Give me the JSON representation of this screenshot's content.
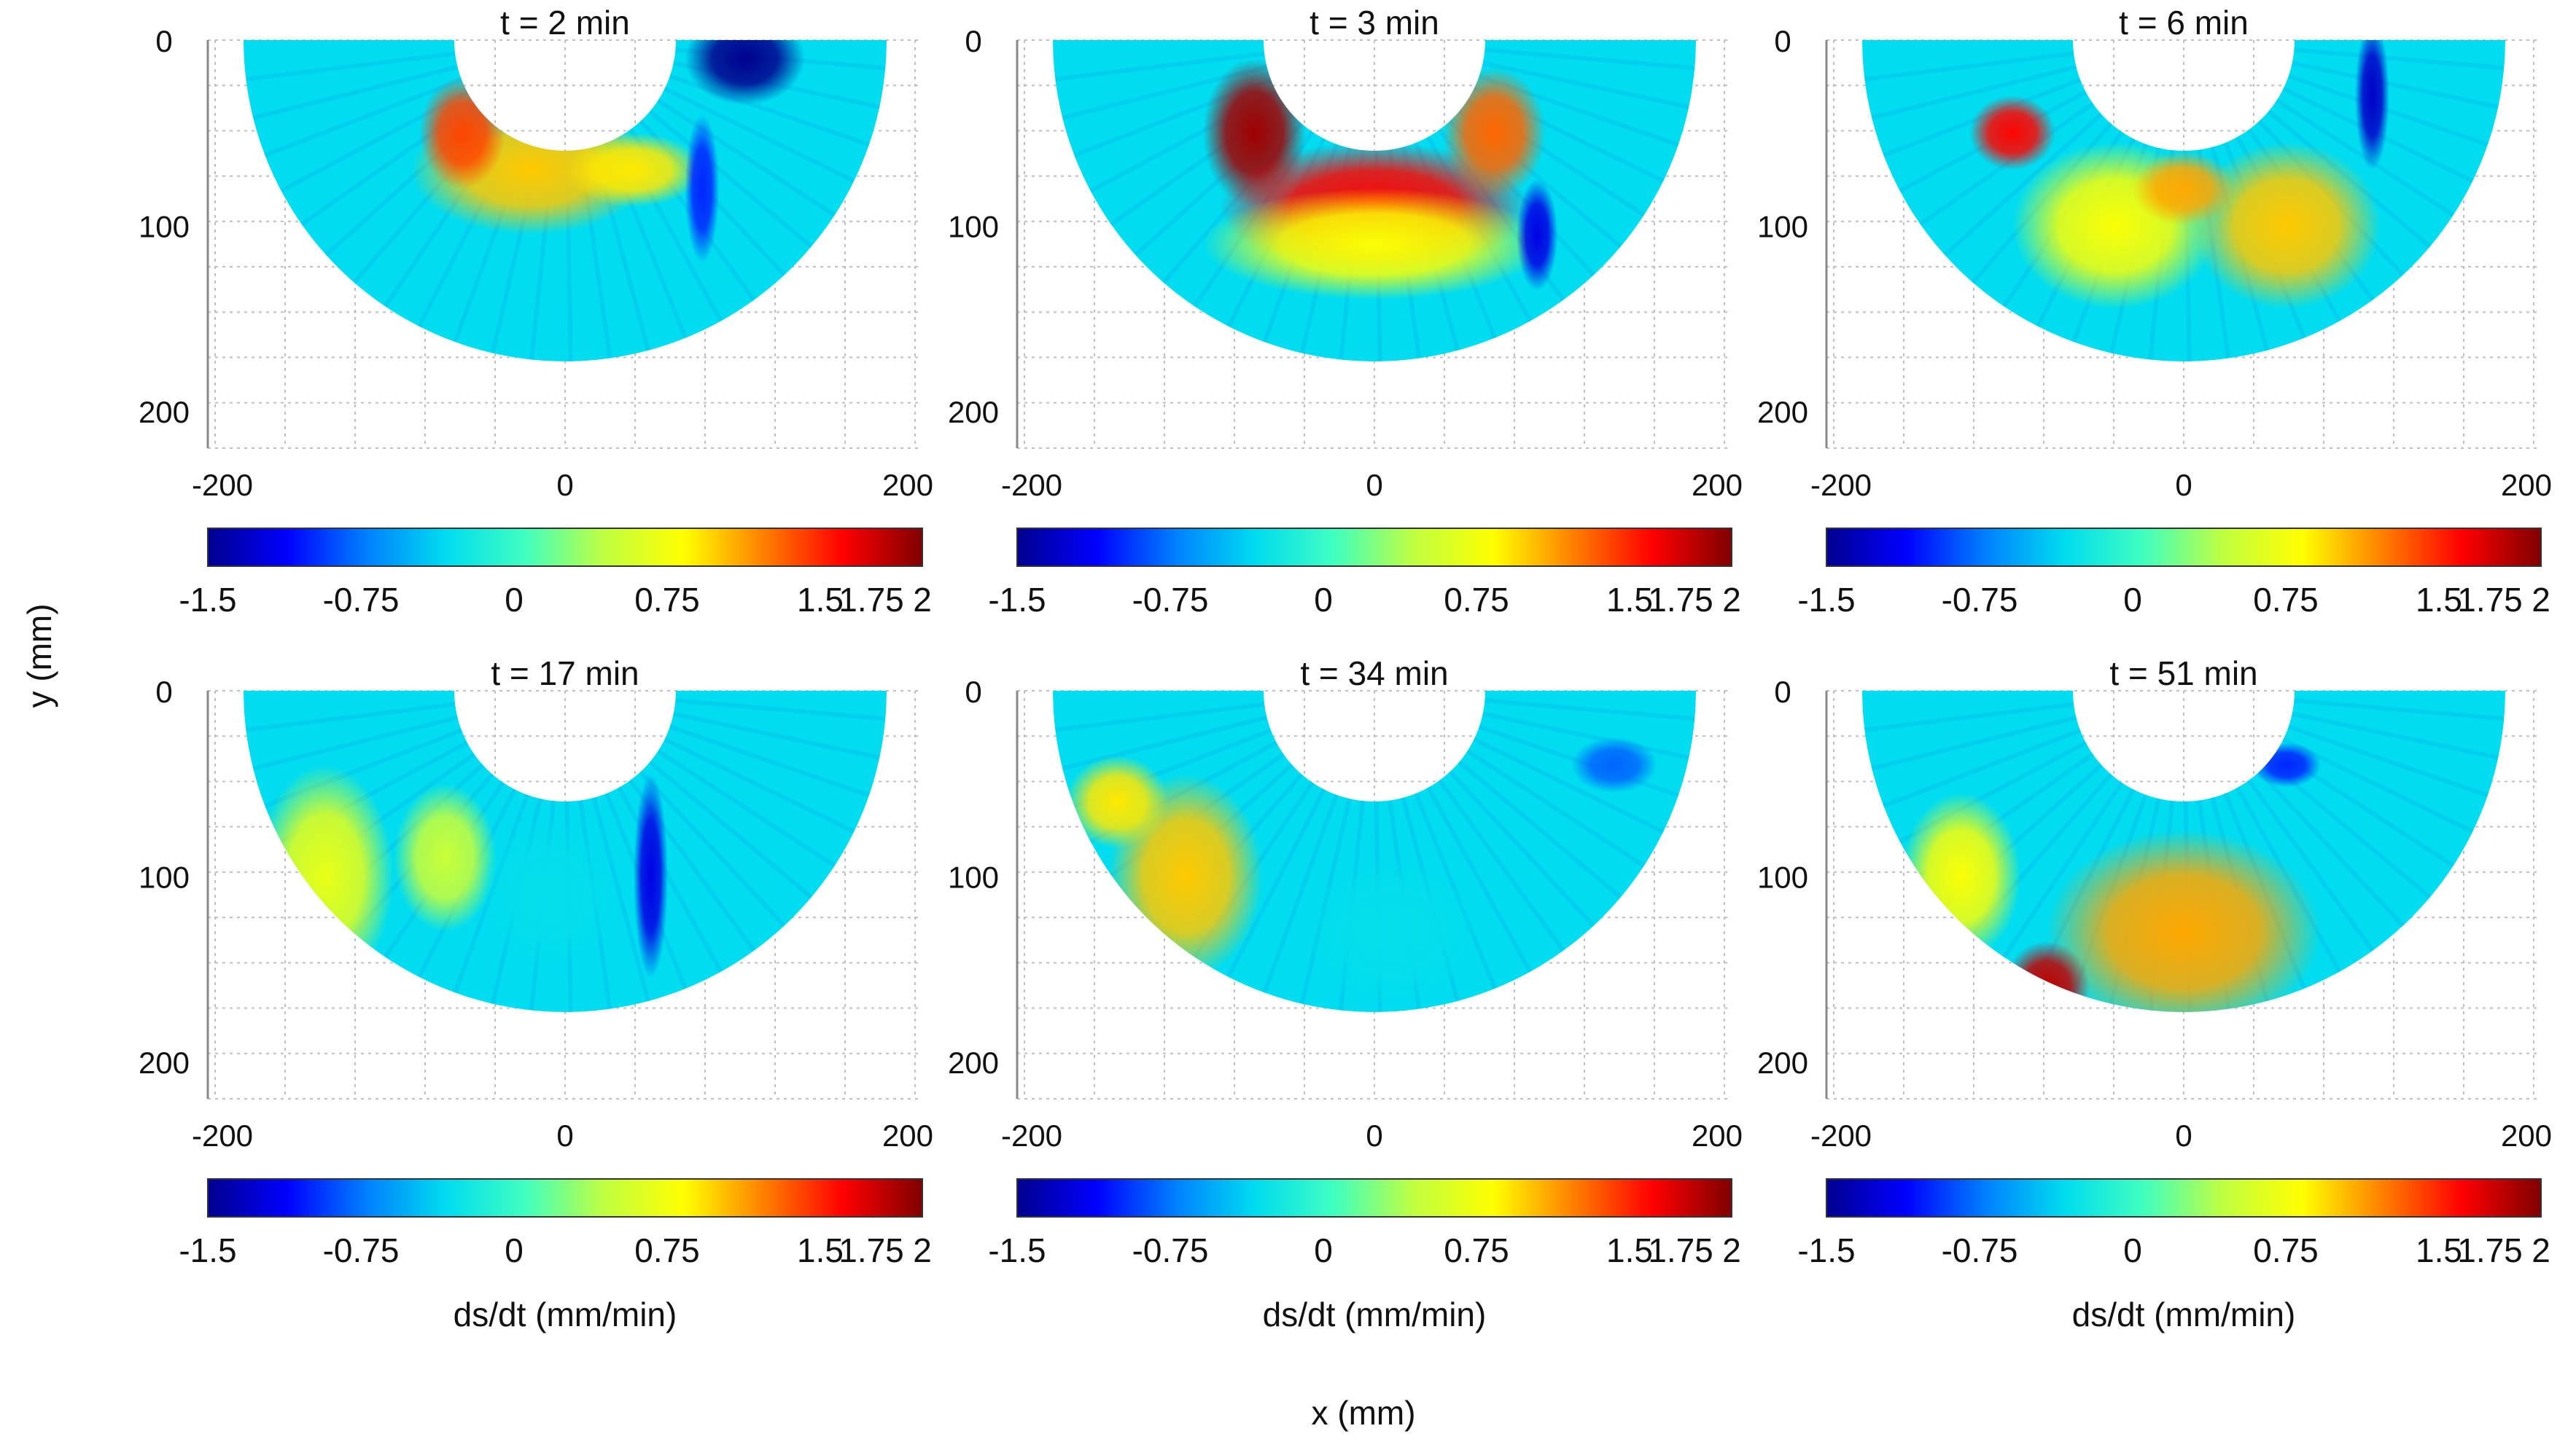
{
  "figure": {
    "y_axis_label": "y (mm)",
    "x_axis_label": "x (mm)"
  },
  "colors": {
    "background_field": "#00dcf0",
    "grid": "#bfbfbf",
    "colormap": [
      "#00008f",
      "#0000ff",
      "#0080ff",
      "#00dcf0",
      "#40ffbf",
      "#c0ff40",
      "#ffff00",
      "#ff8000",
      "#ff0000",
      "#800000"
    ]
  },
  "chart_data": [
    {
      "type": "heatmap",
      "panel": "a",
      "title": "t = 2 min",
      "x_ticks": [
        "-200",
        "0",
        "200"
      ],
      "y_ticks": [
        "0",
        "100",
        "200"
      ],
      "xlim": [
        -200,
        200
      ],
      "ylim": [
        0,
        220
      ],
      "colorbar": {
        "label": "",
        "ticks": [
          "-1.5",
          "-0.75",
          "0",
          "0.75",
          "1.5",
          "1.75",
          "2"
        ]
      },
      "hotspots": [
        {
          "x": -20,
          "y": 70,
          "rx": 70,
          "ry": 35,
          "value": 1.0
        },
        {
          "x": -60,
          "y": 50,
          "rx": 25,
          "ry": 30,
          "value": 1.4
        },
        {
          "x": 40,
          "y": 70,
          "rx": 40,
          "ry": 20,
          "value": 0.9
        },
        {
          "x": 105,
          "y": 10,
          "rx": 35,
          "ry": 25,
          "value": -1.5
        },
        {
          "x": 80,
          "y": 80,
          "rx": 10,
          "ry": 40,
          "value": -1.0
        }
      ]
    },
    {
      "type": "heatmap",
      "panel": "b",
      "title": "t = 3 min",
      "x_ticks": [
        "-200",
        "0",
        "200"
      ],
      "y_ticks": [
        "0",
        "100",
        "200"
      ],
      "xlim": [
        -200,
        200
      ],
      "ylim": [
        0,
        220
      ],
      "colorbar": {
        "label": "",
        "ticks": [
          "-1.5",
          "-0.75",
          "0",
          "0.75",
          "1.5",
          "1.75",
          "2"
        ]
      },
      "hotspots": [
        {
          "x": -70,
          "y": 50,
          "rx": 30,
          "ry": 40,
          "value": 1.9
        },
        {
          "x": 0,
          "y": 90,
          "rx": 90,
          "ry": 35,
          "value": 1.6
        },
        {
          "x": 70,
          "y": 50,
          "rx": 30,
          "ry": 35,
          "value": 1.3
        },
        {
          "x": 0,
          "y": 110,
          "rx": 100,
          "ry": 30,
          "value": 0.8
        },
        {
          "x": 95,
          "y": 105,
          "rx": 12,
          "ry": 30,
          "value": -1.2
        }
      ]
    },
    {
      "type": "heatmap",
      "panel": "c",
      "title": "t = 6 min",
      "x_ticks": [
        "-200",
        "0",
        "200"
      ],
      "y_ticks": [
        "0",
        "100",
        "200"
      ],
      "xlim": [
        -200,
        200
      ],
      "ylim": [
        0,
        220
      ],
      "colorbar": {
        "label": "",
        "ticks": [
          "-1.5",
          "-0.75",
          "0",
          "0.75",
          "1.5",
          "1.75",
          "2"
        ]
      },
      "hotspots": [
        {
          "x": -100,
          "y": 50,
          "rx": 25,
          "ry": 20,
          "value": 1.6
        },
        {
          "x": -40,
          "y": 100,
          "rx": 60,
          "ry": 45,
          "value": 0.8
        },
        {
          "x": 60,
          "y": 100,
          "rx": 55,
          "ry": 45,
          "value": 1.0
        },
        {
          "x": 0,
          "y": 80,
          "rx": 30,
          "ry": 20,
          "value": 1.1
        },
        {
          "x": 110,
          "y": 30,
          "rx": 10,
          "ry": 40,
          "value": -1.3
        }
      ]
    },
    {
      "type": "heatmap",
      "panel": "d",
      "title": "t = 17 min",
      "x_ticks": [
        "-200",
        "0",
        "200"
      ],
      "y_ticks": [
        "0",
        "100",
        "200"
      ],
      "xlim": [
        -200,
        200
      ],
      "ylim": [
        0,
        220
      ],
      "colorbar": {
        "label": "ds/dt (mm/min)",
        "ticks": [
          "-1.5",
          "-0.75",
          "0",
          "0.75",
          "1.5",
          "1.75",
          "2"
        ]
      },
      "hotspots": [
        {
          "x": -140,
          "y": 100,
          "rx": 40,
          "ry": 60,
          "value": 0.7
        },
        {
          "x": -70,
          "y": 90,
          "rx": 30,
          "ry": 40,
          "value": 0.5
        },
        {
          "x": 50,
          "y": 100,
          "rx": 10,
          "ry": 55,
          "value": -1.2
        },
        {
          "x": -10,
          "y": 110,
          "rx": 40,
          "ry": 40,
          "value": -0.3
        }
      ]
    },
    {
      "type": "heatmap",
      "panel": "e",
      "title": "t = 34 min",
      "x_ticks": [
        "-200",
        "0",
        "200"
      ],
      "y_ticks": [
        "0",
        "100",
        "200"
      ],
      "xlim": [
        -200,
        200
      ],
      "ylim": [
        0,
        220
      ],
      "colorbar": {
        "label": "ds/dt (mm/min)",
        "ticks": [
          "-1.5",
          "-0.75",
          "0",
          "0.75",
          "1.5",
          "1.75",
          "2"
        ]
      },
      "hotspots": [
        {
          "x": -110,
          "y": 100,
          "rx": 45,
          "ry": 55,
          "value": 1.0
        },
        {
          "x": -150,
          "y": 60,
          "rx": 30,
          "ry": 25,
          "value": 0.9
        },
        {
          "x": 10,
          "y": 130,
          "rx": 50,
          "ry": 40,
          "value": -0.3
        },
        {
          "x": 140,
          "y": 40,
          "rx": 25,
          "ry": 15,
          "value": -0.8
        }
      ]
    },
    {
      "type": "heatmap",
      "panel": "f",
      "title": "t = 51 min",
      "x_ticks": [
        "-200",
        "0",
        "200"
      ],
      "y_ticks": [
        "0",
        "100",
        "200"
      ],
      "xlim": [
        -200,
        200
      ],
      "ylim": [
        0,
        220
      ],
      "colorbar": {
        "label": "ds/dt (mm/min)",
        "ticks": [
          "-1.5",
          "-0.75",
          "0",
          "0.75",
          "1.5",
          "1.75",
          "2"
        ]
      },
      "hotspots": [
        {
          "x": 0,
          "y": 130,
          "rx": 80,
          "ry": 55,
          "value": 1.1
        },
        {
          "x": -80,
          "y": 160,
          "rx": 25,
          "ry": 25,
          "value": 1.8
        },
        {
          "x": -130,
          "y": 100,
          "rx": 35,
          "ry": 45,
          "value": 0.8
        },
        {
          "x": 60,
          "y": 40,
          "rx": 20,
          "ry": 12,
          "value": -1.0
        }
      ]
    }
  ]
}
